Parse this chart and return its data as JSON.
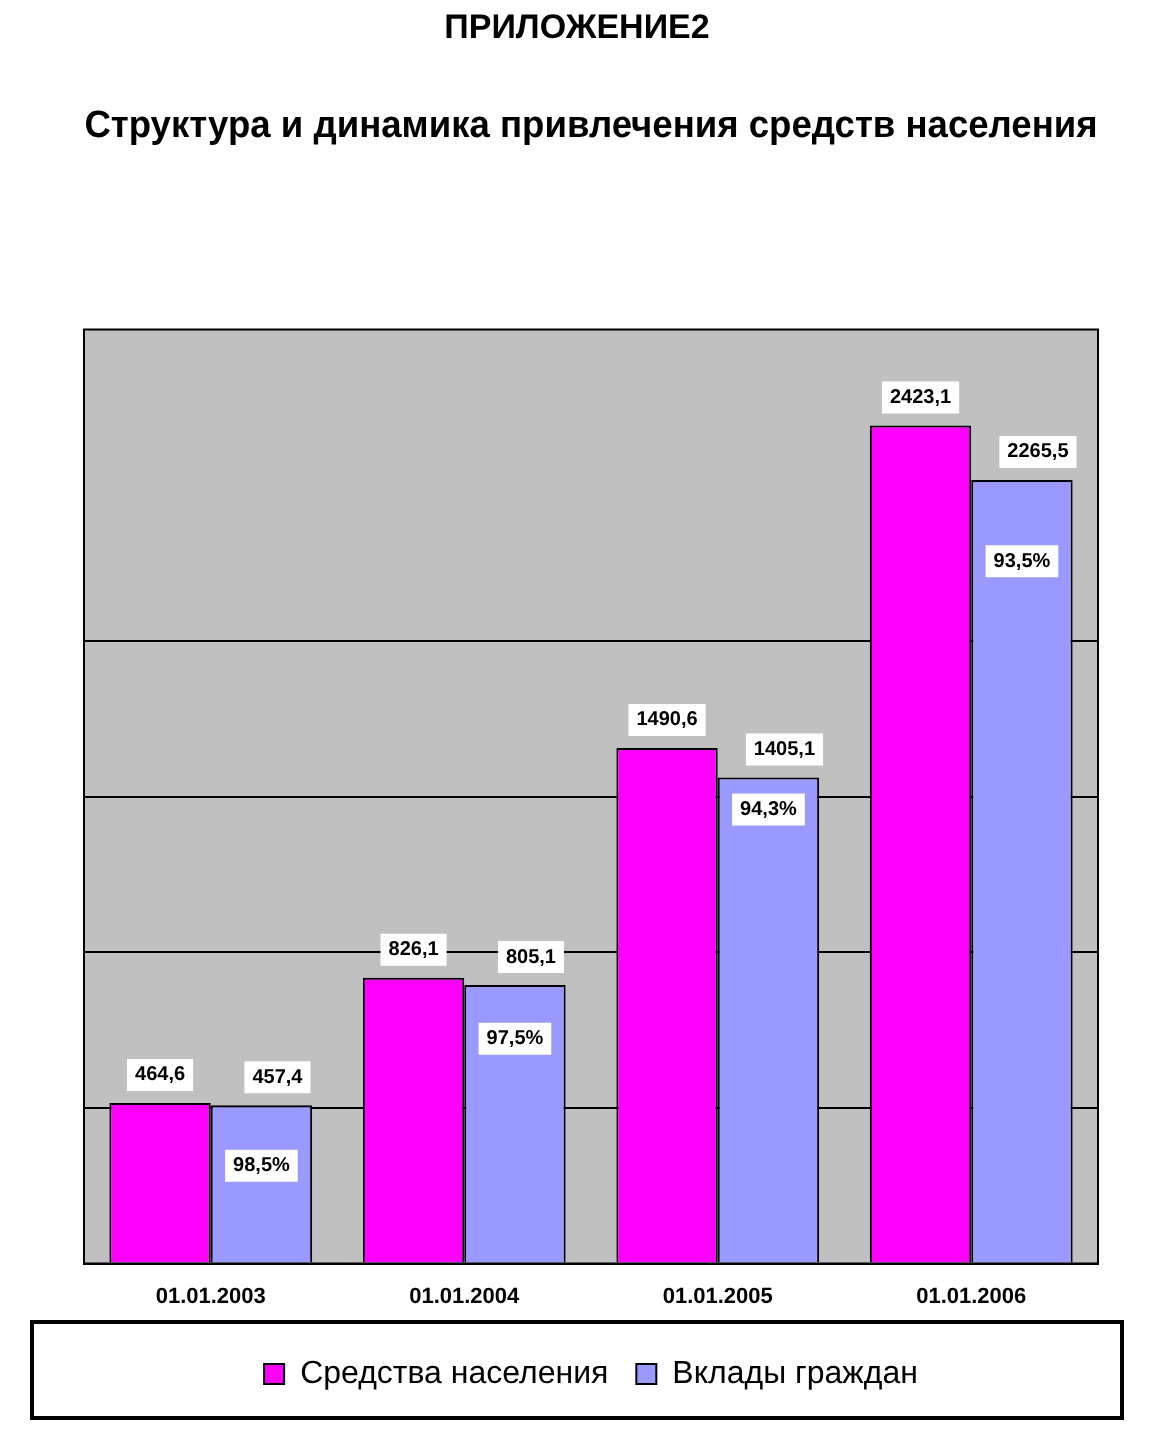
{
  "chart_data": {
    "type": "bar",
    "title": "Структура и динамика привлечения средств населения",
    "categories": [
      "01.01.2003",
      "01.01.2004",
      "01.01.2005",
      "01.01.2006"
    ],
    "series": [
      {
        "name": "Средства населения",
        "color": "#ff00ff",
        "values": [
          464.6,
          826.1,
          1490.6,
          2423.1
        ],
        "value_labels": [
          "464,6",
          "826,1",
          "1490,6",
          "2423,1"
        ]
      },
      {
        "name": "Вклады граждан",
        "color": "#9999ff",
        "values": [
          457.4,
          805.1,
          1405.1,
          2265.5
        ],
        "value_labels": [
          "457,4",
          "805,1",
          "1405,1",
          "2265,5"
        ]
      }
    ],
    "ylim": [
      0,
      2700
    ],
    "yticks": [
      {
        "value": 0,
        "label": null
      },
      {
        "value": 450,
        "label": null
      },
      {
        "value": 900,
        "label": null
      },
      {
        "value": 1350,
        "label": null
      },
      {
        "value": 1800,
        "label": null
      }
    ],
    "tick_labels": "x",
    "grid": "y",
    "legend": "bottom",
    "annotations": [
      "ПРИЛОЖЕНИЕ2",
      {
        "text": "98,5%",
        "x": "01.01.2003",
        "y": 283
      },
      {
        "text": "97,5%",
        "x": "01.01.2004",
        "y": 650
      },
      {
        "text": "94,3%",
        "x": "01.01.2005",
        "y": 1313
      },
      {
        "text": "93,5%",
        "x": "01.01.2006",
        "y": 2030
      }
    ]
  }
}
